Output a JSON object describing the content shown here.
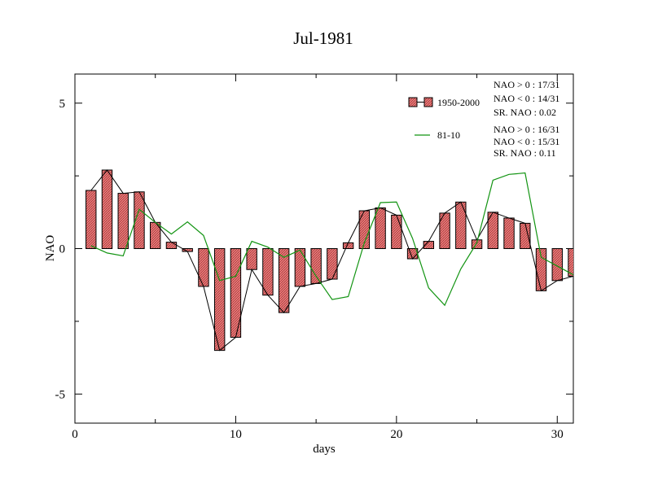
{
  "chart_data": {
    "type": "bar",
    "title": "Jul-1981",
    "xlabel": "days",
    "ylabel": "NAO",
    "xlim": [
      0,
      31
    ],
    "ylim": [
      -6,
      6
    ],
    "xticks": [
      0,
      10,
      20,
      30
    ],
    "xtick_labels": [
      "0",
      "10",
      "20",
      "30"
    ],
    "yticks": [
      -5,
      0,
      5
    ],
    "ytick_labels": [
      "-5",
      "0",
      "5"
    ],
    "grid": false,
    "legend_position": "top-right",
    "x": [
      1,
      2,
      3,
      4,
      5,
      6,
      7,
      8,
      9,
      10,
      11,
      12,
      13,
      14,
      15,
      16,
      17,
      18,
      19,
      20,
      21,
      22,
      23,
      24,
      25,
      26,
      27,
      28,
      29,
      30,
      31
    ],
    "series": [
      {
        "name": "1950-2000",
        "kind": "bar_with_line",
        "values": [
          2.0,
          2.7,
          1.9,
          1.95,
          0.9,
          0.22,
          -0.1,
          -1.3,
          -3.5,
          -3.05,
          -0.72,
          -1.6,
          -2.2,
          -1.3,
          -1.2,
          -1.05,
          0.2,
          1.3,
          1.4,
          1.15,
          -0.35,
          0.25,
          1.22,
          1.6,
          0.3,
          1.25,
          1.05,
          0.87,
          -1.45,
          -1.1,
          -0.95
        ]
      },
      {
        "name": "81-10",
        "kind": "line",
        "values": [
          0.1,
          -0.15,
          -0.25,
          1.35,
          0.9,
          0.5,
          0.92,
          0.45,
          -1.1,
          -0.95,
          0.25,
          0.05,
          -0.3,
          -0.05,
          -0.95,
          -1.75,
          -1.65,
          0.2,
          1.58,
          1.6,
          0.35,
          -1.35,
          -1.95,
          -0.7,
          0.2,
          2.35,
          2.55,
          2.6,
          -0.3,
          -0.6,
          -0.9
        ]
      }
    ],
    "colors": {
      "bar_fill": "#e87a7a",
      "bar_stroke": "#000000",
      "line_1950_2000": "#000000",
      "line_81_10": "#129412"
    },
    "legend": {
      "entries": [
        "1950-2000",
        "81-10"
      ]
    },
    "annotations": {
      "block1": [
        "NAO > 0 : 17/31",
        "NAO < 0 : 14/31",
        "SR. NAO :  0.02"
      ],
      "block2": [
        "NAO > 0 : 16/31",
        "NAO < 0 : 15/31",
        "SR. NAO :  0.11"
      ]
    }
  }
}
